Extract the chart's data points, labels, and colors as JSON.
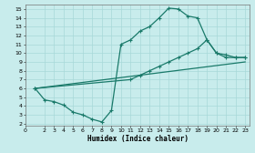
{
  "xlabel": "Humidex (Indice chaleur)",
  "bg_color": "#c8ecec",
  "grid_color": "#a8d8d8",
  "line_color": "#1a7a6a",
  "xlim": [
    0,
    23.5
  ],
  "ylim": [
    1.8,
    15.5
  ],
  "xticks": [
    0,
    2,
    3,
    4,
    5,
    6,
    7,
    8,
    9,
    10,
    11,
    12,
    13,
    14,
    15,
    16,
    17,
    18,
    19,
    20,
    21,
    22,
    23
  ],
  "yticks": [
    2,
    3,
    4,
    5,
    6,
    7,
    8,
    9,
    10,
    11,
    12,
    13,
    14,
    15
  ],
  "curve1_x": [
    1,
    2,
    3,
    4,
    5,
    6,
    7,
    8,
    9,
    10,
    11,
    12,
    13,
    14,
    15,
    16,
    17,
    18,
    19,
    20,
    21,
    22,
    23
  ],
  "curve1_y": [
    6.0,
    4.7,
    4.5,
    4.1,
    3.3,
    3.0,
    2.5,
    2.2,
    3.5,
    11.0,
    11.5,
    12.5,
    13.0,
    14.0,
    15.1,
    15.0,
    14.2,
    14.0,
    11.5,
    10.0,
    9.5,
    9.5,
    9.5
  ],
  "curve2_x": [
    1,
    11,
    12,
    13,
    14,
    15,
    16,
    17,
    18,
    19,
    20,
    21,
    22,
    23
  ],
  "curve2_y": [
    6.0,
    7.0,
    7.5,
    8.0,
    8.5,
    9.0,
    9.5,
    10.0,
    10.5,
    11.5,
    10.0,
    9.8,
    9.5,
    9.5
  ],
  "line3_x": [
    1,
    23
  ],
  "line3_y": [
    6.0,
    9.0
  ]
}
